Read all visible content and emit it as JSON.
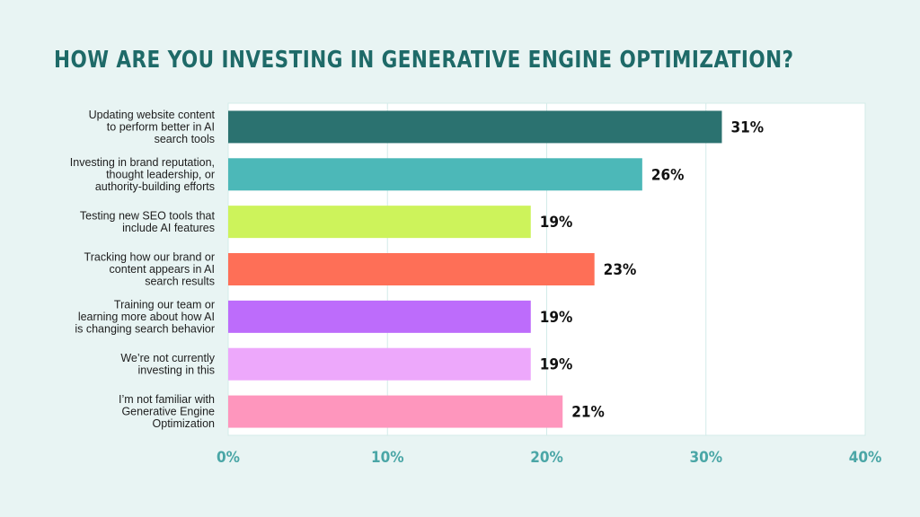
{
  "chart_data": {
    "type": "bar",
    "orientation": "horizontal",
    "title": "HOW ARE YOU INVESTING IN GENERATIVE ENGINE OPTIMIZATION?",
    "categories": [
      [
        "Updating website content",
        "to perform better in AI",
        "search tools"
      ],
      [
        "Investing in brand reputation,",
        "thought leadership, or",
        "authority-building efforts"
      ],
      [
        "Testing new SEO tools that",
        "include AI features"
      ],
      [
        "Tracking how our brand or",
        "content appears in AI",
        "search results"
      ],
      [
        "Training our team or",
        "learning more about how AI",
        "is changing search behavior"
      ],
      [
        "We’re not currently",
        "investing in this"
      ],
      [
        "I’m not familiar with",
        "Generative Engine",
        "Optimization"
      ]
    ],
    "values": [
      31,
      26,
      19,
      23,
      19,
      19,
      21
    ],
    "value_labels": [
      "31%",
      "26%",
      "19%",
      "23%",
      "19%",
      "19%",
      "21%"
    ],
    "colors": [
      "#2b7270",
      "#4cb8b8",
      "#cdf35b",
      "#fe6f57",
      "#bd6cfb",
      "#eda8fb",
      "#fe96bd"
    ],
    "xlim": [
      0,
      40
    ],
    "xticks": [
      0,
      10,
      20,
      30,
      40
    ],
    "xtick_labels": [
      "0%",
      "10%",
      "20%",
      "30%",
      "40%"
    ],
    "grid": true,
    "colors_theme": {
      "title": "#1e6a68",
      "tick": "#4aa6a6",
      "background": "#e8f4f3",
      "plot_background": "#ffffff"
    }
  }
}
